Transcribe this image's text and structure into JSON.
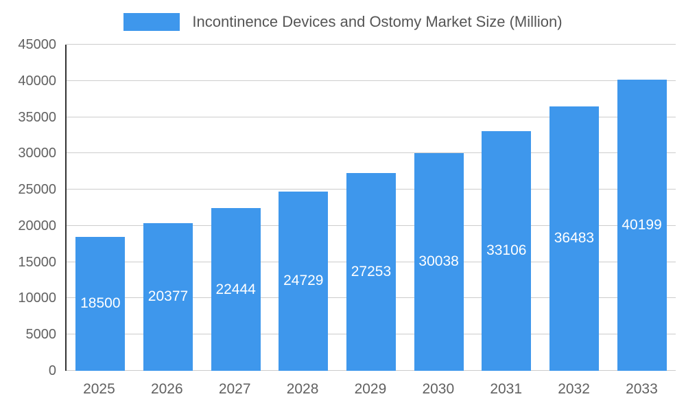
{
  "chart_data": {
    "type": "bar",
    "title": "Incontinence Devices and Ostomy Market Size (Million)",
    "categories": [
      "2025",
      "2026",
      "2027",
      "2028",
      "2029",
      "2030",
      "2031",
      "2032",
      "2033"
    ],
    "values": [
      18500,
      20377,
      22444,
      24729,
      27253,
      30038,
      33106,
      36483,
      40199
    ],
    "xlabel": "",
    "ylabel": "",
    "ylim": [
      0,
      45000
    ],
    "ytick_step": 5000,
    "yticks": [
      0,
      5000,
      10000,
      15000,
      20000,
      25000,
      30000,
      35000,
      40000,
      45000
    ],
    "grid": true,
    "legend_position": "top",
    "colors": {
      "bar": "#3e97ec",
      "bar_value_label": "#ffffff",
      "gridline": "#cccccc",
      "axis_line": "#333333",
      "tick_text": "#616161",
      "title_text": "#555555",
      "background": "#ffffff"
    }
  }
}
